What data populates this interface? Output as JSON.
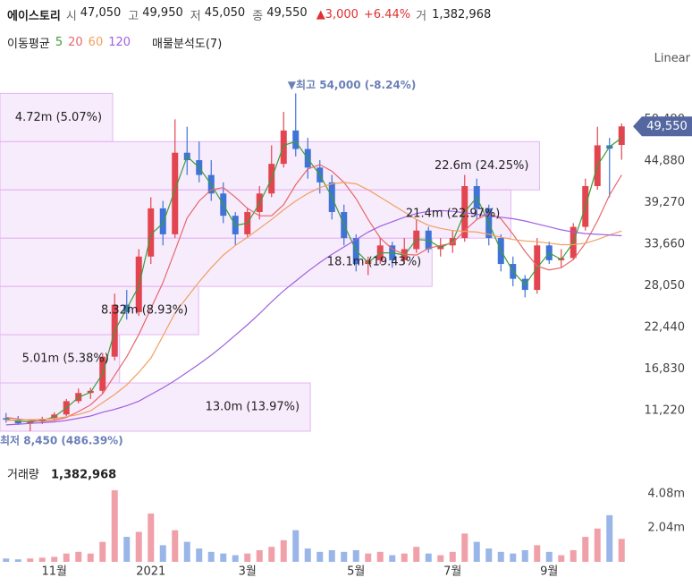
{
  "header": {
    "name": "에이스토리",
    "quote": [
      {
        "label": "시",
        "value": "47,050"
      },
      {
        "label": "고",
        "value": "49,950"
      },
      {
        "label": "저",
        "value": "45,050"
      },
      {
        "label": "종",
        "value": "49,550"
      }
    ],
    "change": "▲3,000",
    "change_pct": "+6.44%",
    "volume_label": "거",
    "volume": "1,382,968",
    "ma_title": "이동평균",
    "analysis": "매물분석도(7)",
    "scale": "Linear"
  },
  "chart_data": {
    "type": "candlestick",
    "categories": [
      null,
      null,
      null,
      null,
      "11월",
      null,
      null,
      null,
      null,
      null,
      null,
      null,
      "2021",
      null,
      null,
      null,
      null,
      null,
      null,
      null,
      "3월",
      null,
      null,
      null,
      null,
      null,
      null,
      null,
      null,
      "5월",
      null,
      null,
      null,
      null,
      null,
      null,
      null,
      "7월",
      null,
      null,
      null,
      null,
      null,
      null,
      null,
      "9월",
      null,
      null,
      null,
      null,
      null,
      null
    ],
    "open": [
      10200,
      10000,
      9500,
      9800,
      10100,
      10700,
      12500,
      13600,
      13900,
      18500,
      25500,
      24500,
      32000,
      38500,
      35000,
      46000,
      45000,
      43000,
      40500,
      37500,
      35000,
      38000,
      40500,
      44500,
      49000,
      46500,
      44000,
      42000,
      38000,
      34500,
      31000,
      31500,
      33500,
      31500,
      33000,
      35500,
      33000,
      33500,
      34500,
      41500,
      38500,
      34500,
      31000,
      29000,
      27500,
      33500,
      31500,
      31800,
      36000,
      41500,
      47000,
      47050
    ],
    "high": [
      10900,
      10500,
      10100,
      10400,
      11000,
      12800,
      14200,
      14300,
      19000,
      27000,
      27500,
      33000,
      40000,
      39500,
      50500,
      49500,
      47500,
      45000,
      42000,
      38000,
      38500,
      41500,
      47000,
      51500,
      54000,
      48000,
      45000,
      43000,
      39000,
      35000,
      32000,
      34500,
      34000,
      34500,
      37000,
      36000,
      34500,
      35500,
      43000,
      42500,
      39000,
      35000,
      32000,
      29500,
      34500,
      34000,
      33000,
      36500,
      42500,
      49500,
      48000,
      49950
    ],
    "low": [
      9600,
      9300,
      8450,
      9400,
      9900,
      10500,
      12200,
      12800,
      13500,
      18000,
      23500,
      24000,
      31000,
      33500,
      34500,
      43000,
      42000,
      39500,
      36500,
      33500,
      34500,
      37000,
      40000,
      44000,
      45500,
      42500,
      40500,
      37000,
      33500,
      30000,
      29500,
      31000,
      30500,
      31000,
      32500,
      32500,
      32000,
      32500,
      34000,
      37000,
      33500,
      30000,
      28000,
      26500,
      27000,
      31000,
      30500,
      31500,
      35500,
      41000,
      40000,
      45050
    ],
    "close": [
      10000,
      9500,
      9800,
      10100,
      10700,
      12500,
      13600,
      13900,
      18500,
      25500,
      24500,
      32000,
      38500,
      35000,
      46000,
      45000,
      43000,
      40500,
      37500,
      35000,
      38000,
      40500,
      44500,
      49000,
      46500,
      44000,
      42000,
      38000,
      34500,
      31000,
      31500,
      33500,
      31500,
      33000,
      35500,
      33000,
      33500,
      34500,
      41500,
      38500,
      34500,
      31000,
      29000,
      27500,
      33500,
      31500,
      31800,
      36000,
      41500,
      47000,
      46550,
      49550
    ],
    "up_color": "#e2454f",
    "down_color": "#3f73d6",
    "ylim": [
      6274,
      56943
    ],
    "yticks": [
      {
        "value": 11220,
        "label": "11,220"
      },
      {
        "value": 16830,
        "label": "16,830"
      },
      {
        "value": 22440,
        "label": "22,440"
      },
      {
        "value": 28050,
        "label": "28,050"
      },
      {
        "value": 33660,
        "label": "33,660"
      },
      {
        "value": 39270,
        "label": "39,270"
      },
      {
        "value": 44880,
        "label": "44,880"
      },
      {
        "value": 50490,
        "label": "50,490"
      }
    ],
    "ma_series": [
      {
        "name": "5",
        "color": "#3a9e3a",
        "values": [
          10100,
          9800,
          9700,
          9900,
          10400,
          11600,
          13000,
          13700,
          16200,
          22000,
          25000,
          28000,
          35000,
          36500,
          41000,
          45500,
          44000,
          41700,
          39000,
          36200,
          36500,
          39200,
          42500,
          47000,
          47500,
          45200,
          43000,
          40000,
          36300,
          32800,
          31200,
          32500,
          32500,
          32200,
          34300,
          34200,
          33200,
          34000,
          38000,
          40000,
          36500,
          32800,
          30000,
          28200,
          30500,
          32500,
          31600,
          33900,
          38700,
          44300,
          46800,
          48000
        ]
      },
      {
        "name": "20",
        "color": "#e8676a",
        "values": [
          10300,
          10100,
          9900,
          9800,
          9900,
          10300,
          11100,
          12000,
          13500,
          16000,
          18500,
          21500,
          25000,
          28500,
          32800,
          37200,
          39500,
          41000,
          41300,
          40000,
          38500,
          37500,
          37500,
          39000,
          41700,
          43800,
          44400,
          43500,
          42000,
          39800,
          37000,
          34500,
          33000,
          32300,
          32200,
          33100,
          33500,
          33800,
          35500,
          37000,
          37800,
          37100,
          35000,
          32700,
          30700,
          30200,
          30500,
          31600,
          33800,
          36800,
          40300,
          43000
        ]
      },
      {
        "name": "60",
        "color": "#f0a060",
        "values": [
          9900,
          9950,
          10000,
          10050,
          10150,
          10400,
          10700,
          11200,
          12300,
          13400,
          14700,
          16400,
          18300,
          21300,
          24400,
          26500,
          28600,
          30500,
          32200,
          33500,
          34600,
          35800,
          37000,
          38300,
          39500,
          40500,
          41300,
          41800,
          42000,
          41800,
          41000,
          40000,
          39000,
          38000,
          37000,
          36200,
          35800,
          35500,
          35400,
          35300,
          35000,
          34600,
          34300,
          34100,
          34000,
          33800,
          33600,
          33600,
          33800,
          34300,
          34900,
          35450
        ]
      },
      {
        "name": "120",
        "color": "#a060e0",
        "values": [
          9300,
          9400,
          9500,
          9600,
          9700,
          9900,
          10200,
          10500,
          11000,
          11400,
          11900,
          12500,
          13400,
          14300,
          15300,
          16400,
          17500,
          18700,
          20000,
          21400,
          22800,
          24300,
          25900,
          27400,
          28700,
          30000,
          31200,
          32300,
          33300,
          34300,
          35300,
          36100,
          36700,
          37300,
          37800,
          38100,
          38200,
          38100,
          37900,
          37700,
          37500,
          37300,
          37100,
          36800,
          36400,
          36000,
          35600,
          35300,
          35100,
          35000,
          34900,
          34800
        ]
      }
    ],
    "last_price": {
      "value": 49550,
      "label": "49,550"
    },
    "price_high": {
      "value": 54000,
      "label": "▼최고 54,000 (-8.24%)"
    },
    "price_low": {
      "value": 8450,
      "label": "최저 8,450 (486.39%)"
    },
    "volume_profile": [
      {
        "volume": 4.72,
        "label": "4.72m (5.07%)"
      },
      {
        "volume": 22.6,
        "label": "22.6m (24.25%)"
      },
      {
        "volume": 21.4,
        "label": "21.4m (22.97%)"
      },
      {
        "volume": 18.1,
        "label": "18.1m (19.43%)"
      },
      {
        "volume": 8.32,
        "label": "8.32m (8.93%)"
      },
      {
        "volume": 5.01,
        "label": "5.01m (5.38%)"
      },
      {
        "volume": 13.0,
        "label": "13.0m (13.97%)"
      }
    ],
    "volume": {
      "title": "거래량",
      "value_label": "1,382,968",
      "values": [
        0.2,
        0.15,
        0.2,
        0.25,
        0.3,
        0.5,
        0.6,
        0.5,
        1.2,
        4.3,
        1.5,
        1.8,
        2.9,
        1.0,
        1.9,
        1.2,
        0.8,
        0.6,
        0.5,
        0.4,
        0.5,
        0.7,
        0.9,
        1.3,
        1.9,
        0.8,
        0.6,
        0.7,
        0.6,
        0.7,
        0.5,
        0.6,
        0.4,
        0.5,
        0.9,
        0.5,
        0.4,
        0.6,
        1.7,
        1.2,
        0.8,
        0.6,
        0.5,
        0.7,
        1.0,
        0.6,
        0.4,
        0.7,
        1.5,
        2.0,
        2.8,
        1.38
      ],
      "ylim": [
        0,
        6.07
      ],
      "yticks": [
        {
          "value": 2.04,
          "label": "2.04m"
        },
        {
          "value": 4.08,
          "label": "4.08m"
        }
      ]
    }
  }
}
